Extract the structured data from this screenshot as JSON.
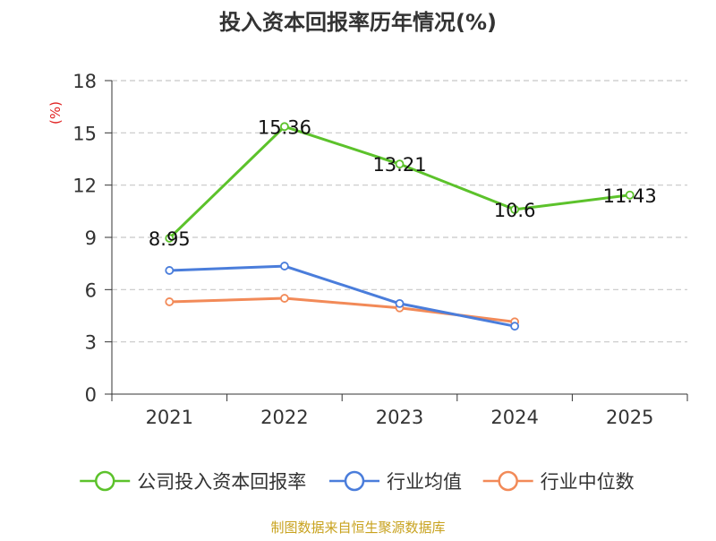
{
  "chart_data": {
    "type": "line",
    "title": "投入资本回报率历年情况(%)",
    "ylabel": "(%)",
    "xlabel": "",
    "categories": [
      "2021",
      "2022",
      "2023",
      "2024",
      "2025"
    ],
    "ylim": [
      0,
      18
    ],
    "yticks": [
      0,
      3,
      6,
      9,
      12,
      15,
      18
    ],
    "ytick_labels": [
      "0",
      "3",
      "6",
      "9",
      "12",
      "15",
      "18"
    ],
    "grid": true,
    "legend_position": "bottom",
    "series": [
      {
        "name": "公司投入资本回报率",
        "color": "#5cc22b",
        "values": [
          8.95,
          15.36,
          13.21,
          10.6,
          11.43
        ],
        "labels": [
          "8.95",
          "15.36",
          "13.21",
          "10.6",
          "11.43"
        ],
        "show_labels": true
      },
      {
        "name": "行业均值",
        "color": "#4a7ddb",
        "values": [
          7.1,
          7.35,
          5.2,
          3.9,
          null
        ],
        "show_labels": false
      },
      {
        "name": "行业中位数",
        "color": "#f28a58",
        "values": [
          5.3,
          5.5,
          4.95,
          4.15,
          null
        ],
        "show_labels": false
      }
    ],
    "source": "制图数据来自恒生聚源数据库"
  }
}
